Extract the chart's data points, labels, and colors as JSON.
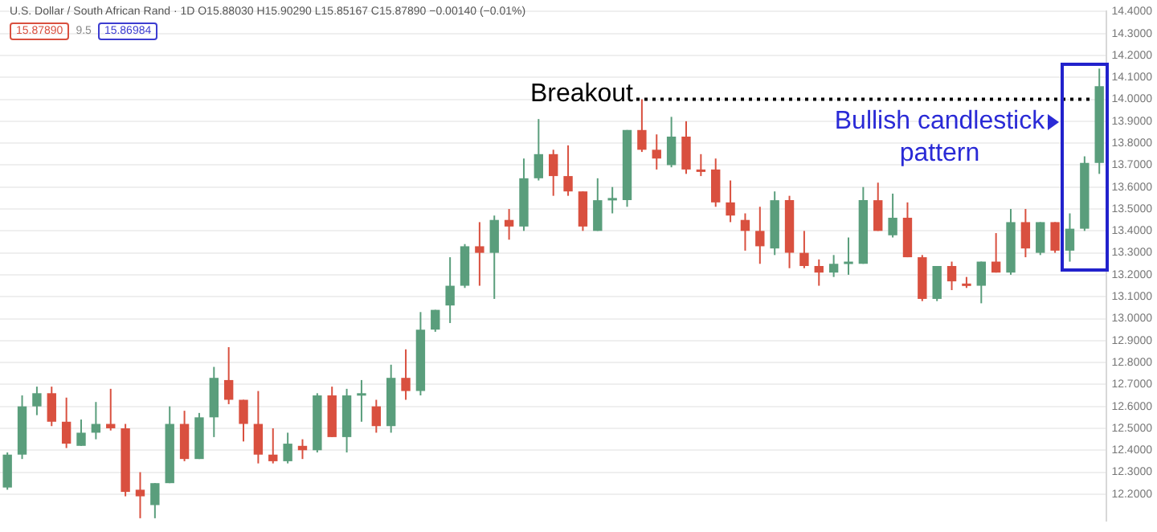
{
  "chart_data": {
    "type": "candlestick",
    "title": "U.S. Dollar / South African Rand · 1D  O15.88030 H15.90290 L15.85167 C15.87890 −0.00140 (−0.01%)",
    "annotations": [
      "15.87890",
      "9.5",
      "15.86984",
      "Bullish candlestick pattern"
    ],
    "categories": [
      null,
      null,
      null,
      null,
      null,
      null,
      null,
      null,
      null,
      null,
      null,
      null,
      null,
      null,
      null,
      null,
      null,
      null,
      null,
      null,
      null,
      null,
      null,
      null,
      null,
      null,
      null,
      null,
      null,
      null,
      null,
      null,
      null,
      null,
      null,
      null,
      null,
      null,
      null,
      null,
      null,
      null,
      null,
      null,
      null,
      null,
      null,
      null,
      null,
      null,
      null,
      null,
      null,
      null,
      null,
      null,
      null,
      null,
      null,
      null,
      null,
      null,
      null,
      null,
      null,
      null,
      null,
      null,
      null,
      null,
      null,
      null,
      null,
      null,
      null
    ],
    "ohlc": [
      [
        12.23,
        12.39,
        12.22,
        12.38
      ],
      [
        12.38,
        12.65,
        12.36,
        12.6
      ],
      [
        12.6,
        12.69,
        12.56,
        12.66
      ],
      [
        12.66,
        12.69,
        12.51,
        12.53
      ],
      [
        12.53,
        12.64,
        12.41,
        12.43
      ],
      [
        12.42,
        12.54,
        12.42,
        12.48
      ],
      [
        12.48,
        12.62,
        12.45,
        12.52
      ],
      [
        12.52,
        12.68,
        12.49,
        12.5
      ],
      [
        12.5,
        12.52,
        12.19,
        12.21
      ],
      [
        12.22,
        12.3,
        12.09,
        12.19
      ],
      [
        12.15,
        12.25,
        12.09,
        12.25
      ],
      [
        12.25,
        12.6,
        12.25,
        12.52
      ],
      [
        12.52,
        12.58,
        12.35,
        12.36
      ],
      [
        12.36,
        12.57,
        12.36,
        12.55
      ],
      [
        12.55,
        12.78,
        12.46,
        12.73
      ],
      [
        12.72,
        12.87,
        12.61,
        12.63
      ],
      [
        12.63,
        12.63,
        12.44,
        12.52
      ],
      [
        12.52,
        12.67,
        12.34,
        12.38
      ],
      [
        12.38,
        12.5,
        12.34,
        12.35
      ],
      [
        12.35,
        12.48,
        12.34,
        12.43
      ],
      [
        12.42,
        12.45,
        12.36,
        12.4
      ],
      [
        12.4,
        12.66,
        12.39,
        12.65
      ],
      [
        12.65,
        12.69,
        12.46,
        12.46
      ],
      [
        12.46,
        12.68,
        12.39,
        12.65
      ],
      [
        12.65,
        12.72,
        12.53,
        12.66
      ],
      [
        12.6,
        12.63,
        12.48,
        12.51
      ],
      [
        12.51,
        12.79,
        12.48,
        12.73
      ],
      [
        12.73,
        12.86,
        12.63,
        12.67
      ],
      [
        12.67,
        13.03,
        12.65,
        12.95
      ],
      [
        12.95,
        13.04,
        12.94,
        13.04
      ],
      [
        13.06,
        13.28,
        12.98,
        13.15
      ],
      [
        13.15,
        13.34,
        13.14,
        13.33
      ],
      [
        13.33,
        13.44,
        13.15,
        13.3
      ],
      [
        13.3,
        13.47,
        13.09,
        13.45
      ],
      [
        13.45,
        13.5,
        13.36,
        13.42
      ],
      [
        13.42,
        13.73,
        13.4,
        13.64
      ],
      [
        13.64,
        13.91,
        13.63,
        13.75
      ],
      [
        13.75,
        13.77,
        13.56,
        13.65
      ],
      [
        13.65,
        13.79,
        13.56,
        13.58
      ],
      [
        13.58,
        13.58,
        13.4,
        13.42
      ],
      [
        13.4,
        13.64,
        13.4,
        13.54
      ],
      [
        13.54,
        13.6,
        13.48,
        13.55
      ],
      [
        13.54,
        13.86,
        13.51,
        13.86
      ],
      [
        13.86,
        14,
        13.76,
        13.77
      ],
      [
        13.77,
        13.84,
        13.68,
        13.73
      ],
      [
        13.7,
        13.92,
        13.69,
        13.83
      ],
      [
        13.83,
        13.9,
        13.66,
        13.68
      ],
      [
        13.68,
        13.75,
        13.65,
        13.68
      ],
      [
        13.68,
        13.73,
        13.51,
        13.53
      ],
      [
        13.53,
        13.63,
        13.44,
        13.47
      ],
      [
        13.45,
        13.48,
        13.31,
        13.4
      ],
      [
        13.4,
        13.51,
        13.25,
        13.33
      ],
      [
        13.32,
        13.58,
        13.29,
        13.54
      ],
      [
        13.54,
        13.56,
        13.23,
        13.3
      ],
      [
        13.3,
        13.4,
        13.23,
        13.24
      ],
      [
        13.24,
        13.27,
        13.15,
        13.21
      ],
      [
        13.21,
        13.29,
        13.19,
        13.25
      ],
      [
        13.25,
        13.37,
        13.2,
        13.26
      ],
      [
        13.25,
        13.6,
        13.25,
        13.54
      ],
      [
        13.54,
        13.62,
        13.4,
        13.4
      ],
      [
        13.38,
        13.57,
        13.37,
        13.46
      ],
      [
        13.46,
        13.53,
        13.28,
        13.28
      ],
      [
        13.28,
        13.29,
        13.08,
        13.09
      ],
      [
        13.09,
        13.24,
        13.08,
        13.24
      ],
      [
        13.24,
        13.26,
        13.13,
        13.17
      ],
      [
        13.16,
        13.19,
        13.14,
        13.15
      ],
      [
        13.15,
        13.26,
        13.07,
        13.26
      ],
      [
        13.26,
        13.39,
        13.21,
        13.21
      ],
      [
        13.21,
        13.5,
        13.2,
        13.44
      ],
      [
        13.44,
        13.5,
        13.28,
        13.32
      ],
      [
        13.3,
        13.44,
        13.29,
        13.44
      ],
      [
        13.44,
        13.44,
        13.3,
        13.31
      ],
      [
        13.31,
        13.48,
        13.26,
        13.41
      ],
      [
        13.41,
        13.74,
        13.4,
        13.71
      ],
      [
        13.71,
        14.14,
        13.66,
        14.06
      ]
    ],
    "colors": [
      "#5a9e7c",
      "#5a9e7c",
      "#5a9e7c",
      "#d9503f",
      "#d9503f",
      "#5a9e7c",
      "#5a9e7c",
      "#d9503f",
      "#d9503f",
      "#d9503f",
      "#5a9e7c",
      "#5a9e7c",
      "#d9503f",
      "#5a9e7c",
      "#5a9e7c",
      "#d9503f",
      "#d9503f",
      "#d9503f",
      "#d9503f",
      "#5a9e7c",
      "#d9503f",
      "#5a9e7c",
      "#d9503f",
      "#5a9e7c",
      "#5a9e7c",
      "#d9503f",
      "#5a9e7c",
      "#d9503f",
      "#5a9e7c",
      "#5a9e7c",
      "#5a9e7c",
      "#5a9e7c",
      "#d9503f",
      "#5a9e7c",
      "#d9503f",
      "#5a9e7c",
      "#5a9e7c",
      "#d9503f",
      "#d9503f",
      "#d9503f",
      "#5a9e7c",
      "#5a9e7c",
      "#5a9e7c",
      "#d9503f",
      "#d9503f",
      "#5a9e7c",
      "#d9503f",
      "#d9503f",
      "#d9503f",
      "#d9503f",
      "#d9503f",
      "#d9503f",
      "#5a9e7c",
      "#d9503f",
      "#d9503f",
      "#d9503f",
      "#5a9e7c",
      "#5a9e7c",
      "#5a9e7c",
      "#d9503f",
      "#5a9e7c",
      "#d9503f",
      "#d9503f",
      "#5a9e7c",
      "#d9503f",
      "#d9503f",
      "#5a9e7c",
      "#d9503f",
      "#5a9e7c",
      "#d9503f",
      "#5a9e7c",
      "#d9503f",
      "#5a9e7c",
      "#5a9e7c",
      "#5a9e7c"
    ],
    "ylim": [
      12.08,
      14.4
    ],
    "yticks": [
      {
        "value": 12.2,
        "label": "12.2000"
      },
      {
        "value": 12.3,
        "label": "12.3000"
      },
      {
        "value": 12.4,
        "label": "12.4000"
      },
      {
        "value": 12.5,
        "label": "12.5000"
      },
      {
        "value": 12.6,
        "label": "12.6000"
      },
      {
        "value": 12.7,
        "label": "12.7000"
      },
      {
        "value": 12.8,
        "label": "12.8000"
      },
      {
        "value": 12.9,
        "label": "12.9000"
      },
      {
        "value": 13.0,
        "label": "13.0000"
      },
      {
        "value": 13.1,
        "label": "13.1000"
      },
      {
        "value": 13.2,
        "label": "13.2000"
      },
      {
        "value": 13.3,
        "label": "13.3000"
      },
      {
        "value": 13.4,
        "label": "13.4000"
      },
      {
        "value": 13.5,
        "label": "13.5000"
      },
      {
        "value": 13.6,
        "label": "13.6000"
      },
      {
        "value": 13.7,
        "label": "13.7000"
      },
      {
        "value": 13.8,
        "label": "13.8000"
      },
      {
        "value": 13.9,
        "label": "13.9000"
      },
      {
        "value": 14.0,
        "label": "14.0000"
      },
      {
        "value": 14.1,
        "label": "14.1000"
      },
      {
        "value": 14.2,
        "label": "14.2000"
      },
      {
        "value": 14.3,
        "label": "14.3000"
      },
      {
        "value": 14.4,
        "label": "14.4000"
      }
    ],
    "ref_lines": [
      {
        "axis": "y",
        "value": 14.0,
        "label": "Breakout",
        "color": "#000000",
        "line_style": "dotted"
      }
    ],
    "grid": "y",
    "legend": false
  }
}
